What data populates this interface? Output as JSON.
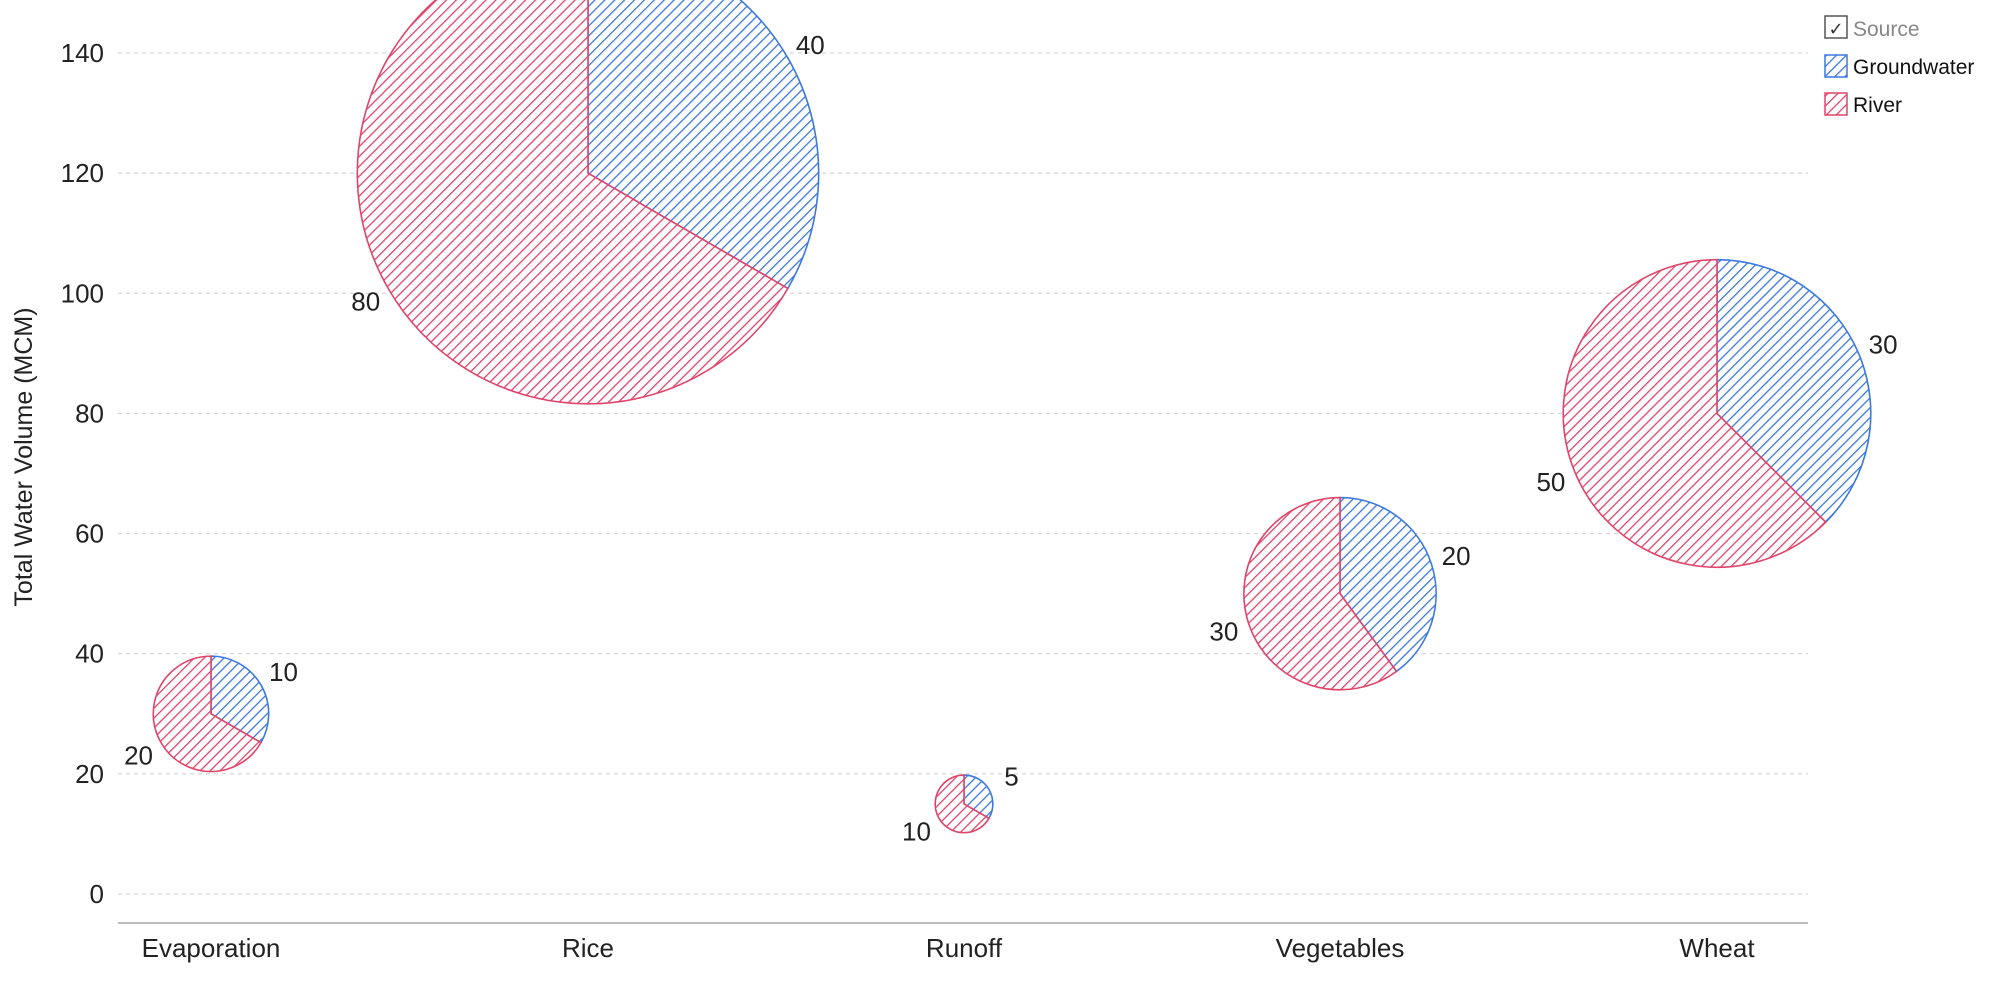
{
  "chart_data": {
    "type": "pie",
    "subtype": "pie-scatter",
    "categories": [
      "Evaporation",
      "Rice",
      "Runoff",
      "Vegetables",
      "Wheat"
    ],
    "ylabel": "Total Water Volume (MCM)",
    "ylim": [
      0,
      140
    ],
    "yticks": [
      0,
      20,
      40,
      60,
      80,
      100,
      120,
      140
    ],
    "grid": true,
    "legend": {
      "title": "Source",
      "placement": "top-right",
      "entries": [
        "Groundwater",
        "River"
      ]
    },
    "series": [
      {
        "name": "Groundwater",
        "color": "#3b78e0",
        "values": [
          10,
          40,
          5,
          20,
          30
        ]
      },
      {
        "name": "River",
        "color": "#e0446a",
        "values": [
          20,
          80,
          10,
          30,
          50
        ]
      }
    ],
    "totals": [
      30,
      120,
      15,
      50,
      80
    ],
    "label_text": {
      "Groundwater": [
        "10",
        "40",
        "5",
        "20",
        "30"
      ],
      "River": [
        "20",
        "80",
        "10",
        "30",
        "50"
      ]
    }
  }
}
